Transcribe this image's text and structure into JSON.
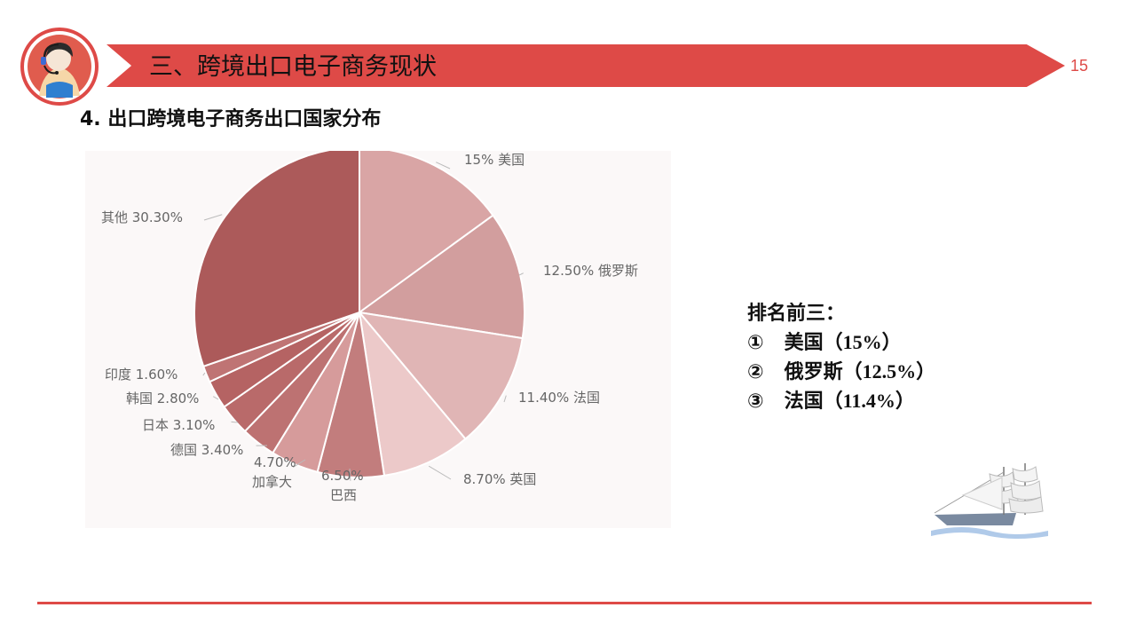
{
  "header": {
    "section_title": "三、跨境出口电子商务现状",
    "page_number": "15",
    "accent_color": "#de4a47"
  },
  "subtitle": "4. 出口跨境电子商务出口国家分布",
  "chart_data": {
    "type": "pie",
    "title": "",
    "series": [
      {
        "values": [
          {
            "label": "美国",
            "value": 15,
            "display": "15%"
          },
          {
            "label": "俄罗斯",
            "value": 12.5,
            "display": "12.50%"
          },
          {
            "label": "法国",
            "value": 11.4,
            "display": "11.40%"
          },
          {
            "label": "英国",
            "value": 8.7,
            "display": "8.70%"
          },
          {
            "label": "巴西",
            "value": 6.5,
            "display": "6.50%"
          },
          {
            "label": "加拿大",
            "value": 4.7,
            "display": "4.70%"
          },
          {
            "label": "德国",
            "value": 3.4,
            "display": "3.40%"
          },
          {
            "label": "日本",
            "value": 3.1,
            "display": "3.10%"
          },
          {
            "label": "韩国",
            "value": 2.8,
            "display": "2.80%"
          },
          {
            "label": "印度",
            "value": 1.6,
            "display": "1.60%"
          },
          {
            "label": "其他",
            "value": 30.3,
            "display": "30.30%"
          }
        ]
      }
    ],
    "colors": [
      "#d9a5a5",
      "#d29e9e",
      "#e0b5b5",
      "#ecc9c9",
      "#c27d7d",
      "#d69b9b",
      "#bd7272",
      "#b96a6a",
      "#b56363",
      "#bf7474",
      "#ac5a5a"
    ]
  },
  "summary": {
    "heading": "排名前三：",
    "items": [
      {
        "marker": "①",
        "name": "美国",
        "value": "（15%）"
      },
      {
        "marker": "②",
        "name": "俄罗斯",
        "value": "（12.5%）"
      },
      {
        "marker": "③",
        "name": "法国",
        "value": "（11.4%）"
      }
    ]
  },
  "icons": {
    "logo": "customer-service-agent-icon",
    "decoration": "sailing-ship-icon"
  }
}
